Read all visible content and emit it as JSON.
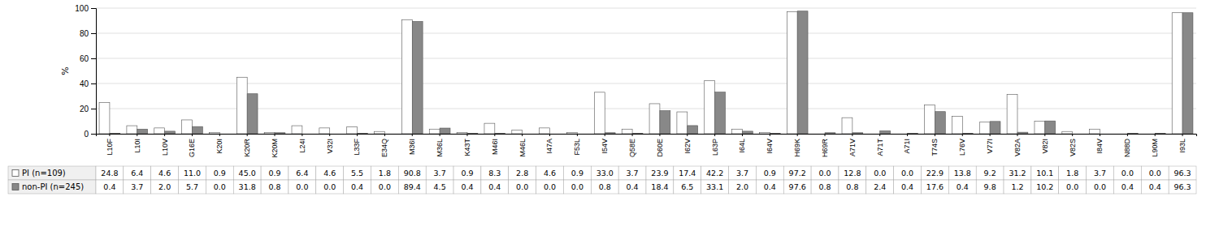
{
  "chart_data": {
    "type": "bar",
    "ylabel": "%",
    "categories": [
      "L10F",
      "L10I",
      "L10V",
      "G16E",
      "K20I",
      "K20R",
      "K20M",
      "L24I",
      "V32I",
      "L33F",
      "E34Q",
      "M36I",
      "M36L",
      "K43T",
      "M46I",
      "M46L",
      "I47A",
      "F53L",
      "I54V",
      "Q58E",
      "D60E",
      "I62V",
      "L63P",
      "I64L",
      "I64V",
      "H69K",
      "H69R",
      "A71V",
      "A71T",
      "A71I",
      "T74S",
      "L76V",
      "V77I",
      "V82A",
      "V82I",
      "V82S",
      "I84V",
      "N88D",
      "L90M",
      "I93L"
    ],
    "series": [
      {
        "name": "PI (n=109)",
        "color": "#ffffff",
        "values": [
          24.8,
          6.4,
          4.6,
          11.0,
          0.9,
          45.0,
          0.9,
          6.4,
          4.6,
          5.5,
          1.8,
          90.8,
          3.7,
          0.9,
          8.3,
          2.8,
          4.6,
          0.9,
          33.0,
          3.7,
          23.9,
          17.4,
          42.2,
          3.7,
          0.9,
          97.2,
          0.0,
          12.8,
          0.0,
          0.0,
          22.9,
          13.8,
          9.2,
          31.2,
          10.1,
          1.8,
          3.7,
          0.0,
          0.0,
          96.3
        ],
        "value_labels": [
          "24.8",
          "6.4",
          "4.6",
          "11.0",
          "0.9",
          "45.0",
          "0.9",
          "6.4",
          "4.6",
          "5.5",
          "1.8",
          "90.8",
          "3.7",
          "0.9",
          "8.3",
          "2.8",
          "4.6",
          "0.9",
          "33.0",
          "3.7",
          "23.9",
          "17.4",
          "42.2",
          "3.7",
          "0.9",
          "97.2",
          "0.0",
          "12.8",
          "0.0",
          "0.0",
          "22.9",
          "13.8",
          "9.2",
          "31.2",
          "10.1",
          "1.8",
          "3.7",
          "0.0",
          "0.0",
          "96.3"
        ]
      },
      {
        "name": "non-PI (n=245)",
        "color": "#888888",
        "values": [
          0.4,
          3.7,
          2.0,
          5.7,
          0.0,
          31.8,
          0.8,
          0.0,
          0.0,
          0.4,
          0.0,
          89.4,
          4.5,
          0.4,
          0.4,
          0.0,
          0.0,
          0.0,
          0.8,
          0.4,
          18.4,
          6.5,
          33.1,
          2.0,
          0.4,
          97.6,
          0.8,
          0.8,
          2.4,
          0.4,
          17.6,
          0.4,
          9.8,
          1.2,
          10.2,
          0.0,
          0.0,
          0.4,
          0.4,
          96.3
        ],
        "value_labels": [
          "0.4",
          "3.7",
          "2.0",
          "5.7",
          "0.0",
          "31.8",
          "0.8",
          "0.0",
          "0.0",
          "0.4",
          "0.0",
          "89.4",
          "4.5",
          "0.4",
          "0.4",
          "0.0",
          "0.0",
          "0.0",
          "0.8",
          "0.4",
          "18.4",
          "6.5",
          "33.1",
          "2.0",
          "0.4",
          "97.6",
          "0.8",
          "0.8",
          "2.4",
          "0.4",
          "17.6",
          "0.4",
          "9.8",
          "1.2",
          "10.2",
          "0.0",
          "0.0",
          "0.4",
          "0.4",
          "96.3"
        ]
      }
    ],
    "ylim": [
      0,
      100
    ],
    "yticks": [
      0,
      20,
      40,
      60,
      80,
      100
    ],
    "grid": true,
    "data_labels": true
  }
}
